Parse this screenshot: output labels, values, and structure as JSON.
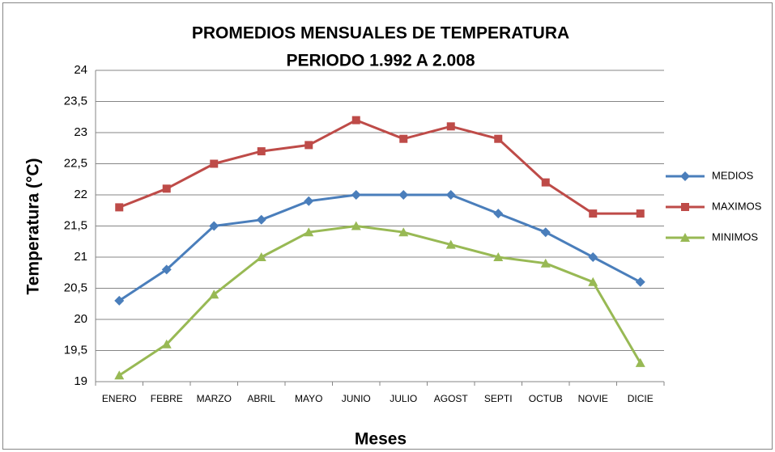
{
  "chart_data": {
    "type": "line",
    "title": "PROMEDIOS MENSUALES DE TEMPERATURA",
    "subtitle": "PERIODO 1.992 A 2.008",
    "x_label": "Meses",
    "y_label": "Temperatura (°C)",
    "categories": [
      "ENERO",
      "FEBRE",
      "MARZO",
      "ABRIL",
      "MAYO",
      "JUNIO",
      "JULIO",
      "AGOST",
      "SEPTI",
      "OCTUB",
      "NOVIE",
      "DICIE"
    ],
    "series": [
      {
        "name": "MEDIOS",
        "color": "#4a7ebb",
        "marker": "diamond",
        "values": [
          20.3,
          20.8,
          21.5,
          21.6,
          21.9,
          22.0,
          22.0,
          22.0,
          21.7,
          21.4,
          21.0,
          20.6
        ]
      },
      {
        "name": "MAXIMOS",
        "color": "#be4b48",
        "marker": "square",
        "values": [
          21.8,
          22.1,
          22.5,
          22.7,
          22.8,
          23.2,
          22.9,
          23.1,
          22.9,
          22.2,
          21.7,
          21.7
        ]
      },
      {
        "name": "MINIMOS",
        "color": "#98b954",
        "marker": "triangle",
        "values": [
          19.1,
          19.6,
          20.4,
          21.0,
          21.4,
          21.5,
          21.4,
          21.2,
          21.0,
          20.9,
          20.6,
          19.3
        ]
      }
    ],
    "ylim": [
      19,
      24
    ],
    "yticks": [
      19,
      {
        "value": 19.5,
        "label": "19,5"
      },
      20,
      {
        "value": 20.5,
        "label": "20,5"
      },
      21,
      {
        "value": 21.5,
        "label": "21,5"
      },
      22,
      {
        "value": 22.5,
        "label": "22,5"
      },
      23,
      {
        "value": 23.5,
        "label": "23,5"
      },
      24
    ],
    "grid": true,
    "legend": "right"
  }
}
